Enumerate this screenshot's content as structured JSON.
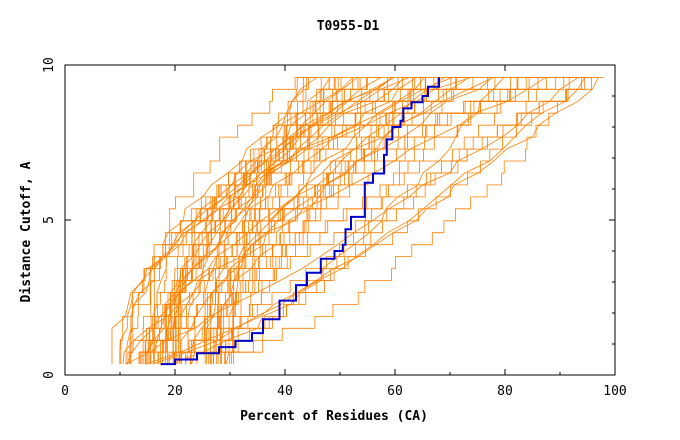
{
  "chart_data": {
    "type": "line",
    "title": "T0955-D1",
    "xlabel": "Percent of Residues (CA)",
    "ylabel": "Distance Cutoff, A",
    "xlim": [
      0,
      100
    ],
    "ylim": [
      0,
      10
    ],
    "x_ticks": [
      0,
      20,
      40,
      60,
      80,
      100
    ],
    "y_ticks": [
      0,
      5,
      10
    ],
    "grid": false,
    "colors": {
      "background_series": "#ff8000",
      "highlight_series": "#0000cc"
    },
    "background_series_count": 70,
    "highlight_series": {
      "x": [
        17.4,
        20,
        24,
        28,
        31,
        34,
        36,
        39,
        42,
        44,
        46.5,
        49,
        50.5,
        51,
        52,
        54.5,
        54.5,
        56,
        58,
        58.5,
        59.5,
        61,
        61.5,
        63,
        65,
        66,
        68
      ],
      "y": [
        0.35,
        0.5,
        0.7,
        0.9,
        1.1,
        1.35,
        1.8,
        2.4,
        2.9,
        3.3,
        3.75,
        4.0,
        4.2,
        4.7,
        5.1,
        5.2,
        6.2,
        6.5,
        7.1,
        7.6,
        8.0,
        8.2,
        8.6,
        8.8,
        9.0,
        9.3,
        9.6
      ]
    }
  }
}
